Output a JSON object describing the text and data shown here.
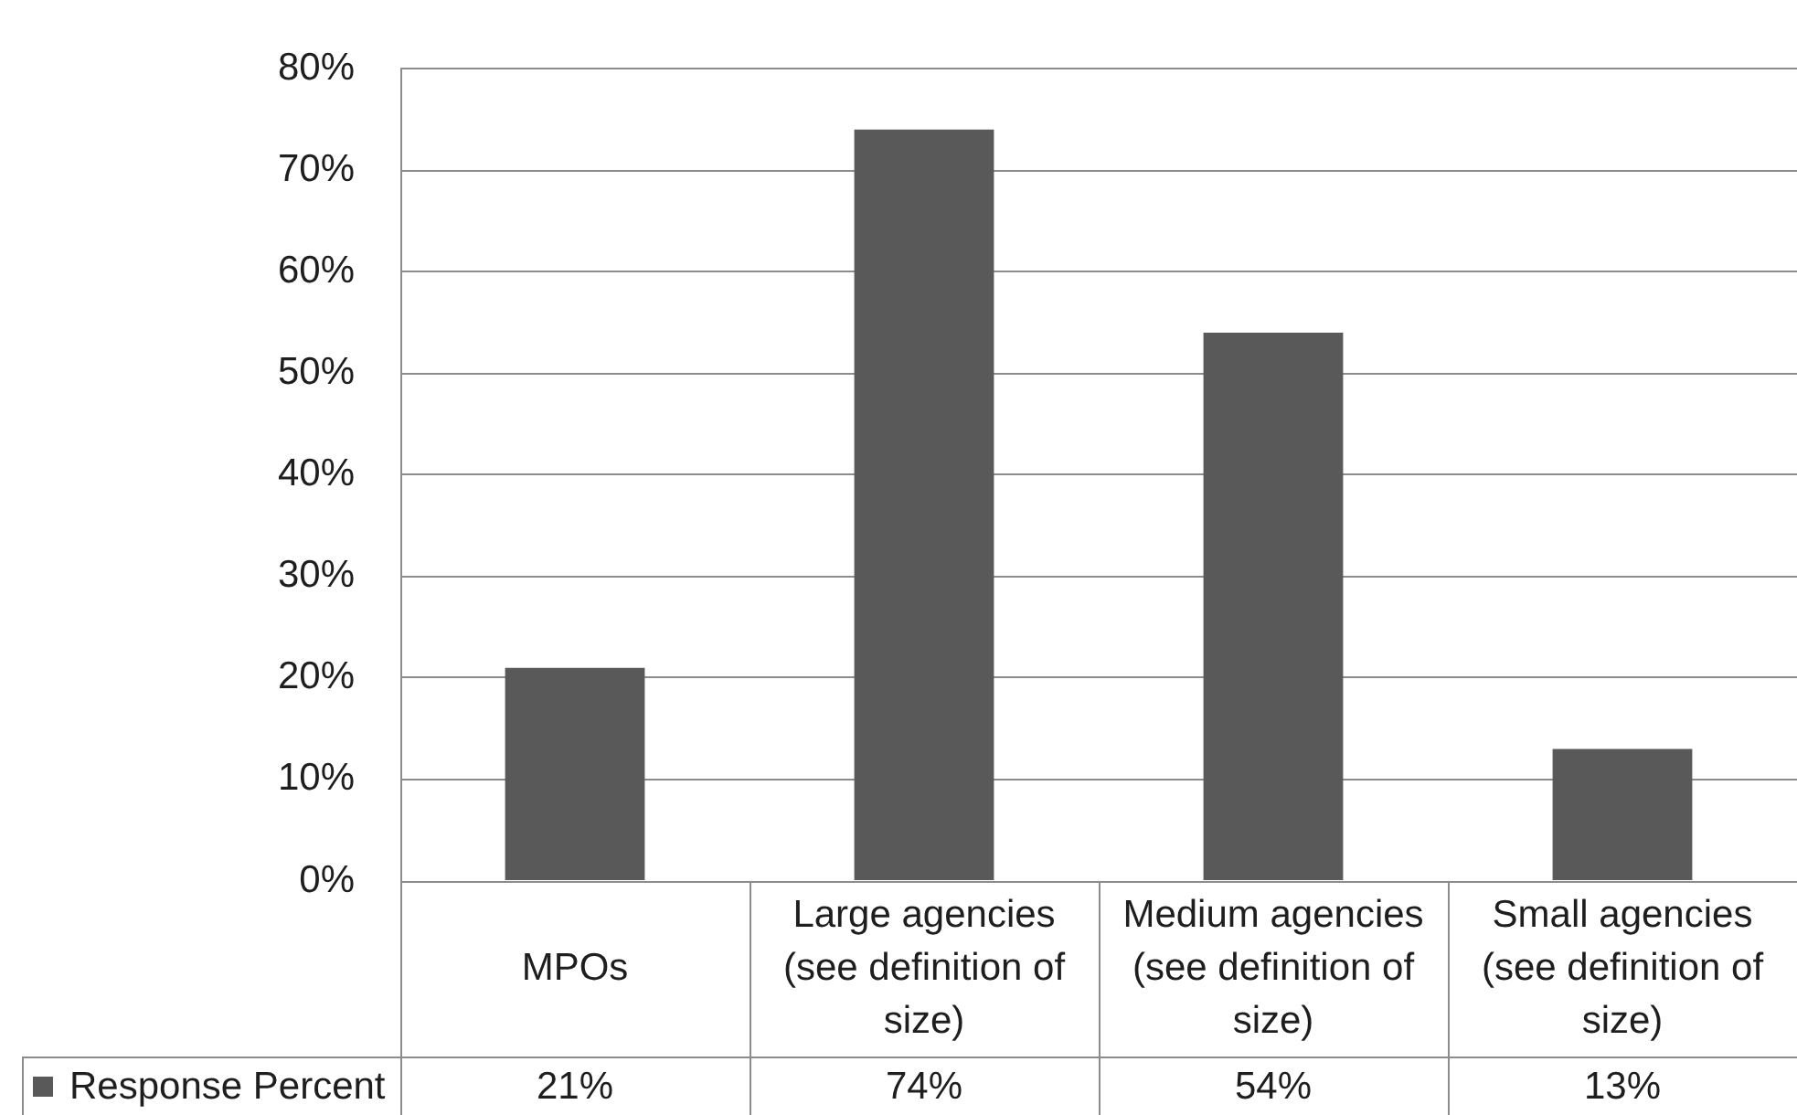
{
  "chart_data": {
    "type": "bar",
    "categories": [
      "MPOs",
      "Large agencies (see definition of size)",
      "Medium agencies (see definition of size)",
      "Small agencies (see definition of size)"
    ],
    "series": [
      {
        "name": "Response Percent",
        "color": "#595959",
        "values": [
          21,
          74,
          54,
          13
        ],
        "value_labels": [
          "21%",
          "74%",
          "54%",
          "13%"
        ]
      }
    ],
    "ylim": [
      0,
      80
    ],
    "yticks": [
      {
        "value": 0,
        "label": "0%"
      },
      {
        "value": 10,
        "label": "10%"
      },
      {
        "value": 20,
        "label": "20%"
      },
      {
        "value": 30,
        "label": "30%"
      },
      {
        "value": 40,
        "label": "40%"
      },
      {
        "value": 50,
        "label": "50%"
      },
      {
        "value": 60,
        "label": "60%"
      },
      {
        "value": 70,
        "label": "70%"
      },
      {
        "value": 80,
        "label": "80%"
      }
    ],
    "grid": "y",
    "legend": "bottom left"
  }
}
